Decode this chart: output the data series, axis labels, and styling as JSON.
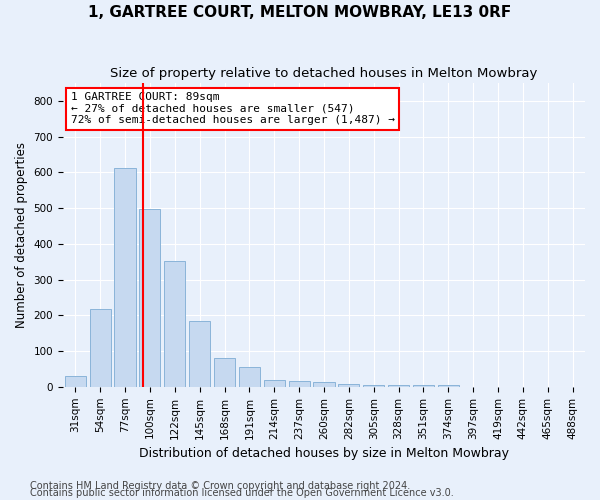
{
  "title1": "1, GARTREE COURT, MELTON MOWBRAY, LE13 0RF",
  "title2": "Size of property relative to detached houses in Melton Mowbray",
  "xlabel": "Distribution of detached houses by size in Melton Mowbray",
  "ylabel": "Number of detached properties",
  "bar_values": [
    30,
    218,
    612,
    497,
    353,
    185,
    82,
    55,
    20,
    16,
    13,
    7,
    5,
    5,
    5,
    5,
    0,
    0,
    0,
    0,
    0
  ],
  "categories": [
    "31sqm",
    "54sqm",
    "77sqm",
    "100sqm",
    "122sqm",
    "145sqm",
    "168sqm",
    "191sqm",
    "214sqm",
    "237sqm",
    "260sqm",
    "282sqm",
    "305sqm",
    "328sqm",
    "351sqm",
    "374sqm",
    "397sqm",
    "419sqm",
    "442sqm",
    "465sqm",
    "488sqm"
  ],
  "bar_color": "#c6d9f0",
  "bar_edgecolor": "#8ab4d9",
  "redline_x": 2.73,
  "annotation_text": "1 GARTREE COURT: 89sqm\n← 27% of detached houses are smaller (547)\n72% of semi-detached houses are larger (1,487) →",
  "annotation_box_color": "white",
  "annotation_box_edgecolor": "red",
  "redline_color": "red",
  "ylim": [
    0,
    850
  ],
  "yticks": [
    0,
    100,
    200,
    300,
    400,
    500,
    600,
    700,
    800
  ],
  "footer1": "Contains HM Land Registry data © Crown copyright and database right 2024.",
  "footer2": "Contains public sector information licensed under the Open Government Licence v3.0.",
  "bg_color": "#e8f0fb",
  "plot_bg_color": "#e8f0fb",
  "grid_color": "white",
  "title1_fontsize": 11,
  "title2_fontsize": 9.5,
  "xlabel_fontsize": 9,
  "ylabel_fontsize": 8.5,
  "tick_fontsize": 7.5,
  "annotation_fontsize": 8,
  "footer_fontsize": 7
}
